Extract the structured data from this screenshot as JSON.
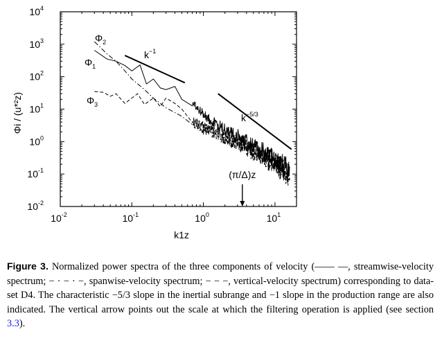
{
  "chart_data": {
    "type": "line",
    "x_scale": "log",
    "y_scale": "log",
    "xlim": [
      0.01,
      20
    ],
    "ylim": [
      0.01,
      10000
    ],
    "grid": false,
    "legend": "none",
    "ylabel": "Φi / (u*²z)",
    "xlabel": "k1z",
    "x_ticks": [
      {
        "base": "10",
        "exp": "-2"
      },
      {
        "base": "10",
        "exp": "-1"
      },
      {
        "base": "10",
        "exp": "0"
      },
      {
        "base": "10",
        "exp": "1"
      }
    ],
    "y_ticks": [
      {
        "base": "10",
        "exp": "-2"
      },
      {
        "base": "10",
        "exp": "-1"
      },
      {
        "base": "10",
        "exp": "0"
      },
      {
        "base": "10",
        "exp": "1"
      },
      {
        "base": "10",
        "exp": "2"
      },
      {
        "base": "10",
        "exp": "3"
      },
      {
        "base": "10",
        "exp": "4"
      }
    ],
    "series": [
      {
        "name": "Φ1",
        "style": "solid",
        "x": [
          0.03,
          0.045,
          0.06,
          0.08,
          0.1,
          0.13,
          0.16,
          0.2,
          0.25,
          0.3,
          0.4,
          0.5,
          0.7,
          1.0,
          1.5,
          2,
          3,
          4,
          6,
          8,
          10,
          13,
          16
        ],
        "y": [
          650,
          350,
          300,
          220,
          150,
          230,
          60,
          85,
          45,
          40,
          50,
          20,
          15,
          7,
          3.5,
          2.2,
          1.4,
          0.9,
          0.55,
          0.35,
          0.25,
          0.17,
          0.12
        ]
      },
      {
        "name": "Φ2",
        "style": "dashdot",
        "x": [
          0.03,
          0.045,
          0.06,
          0.08,
          0.1,
          0.15,
          0.2,
          0.3,
          0.5,
          0.7,
          1.0,
          1.5,
          2,
          3,
          4,
          6,
          8,
          10,
          13,
          16
        ],
        "y": [
          1200,
          500,
          300,
          150,
          85,
          40,
          22,
          11,
          6,
          3.8,
          2.3,
          1.7,
          1.3,
          0.9,
          0.65,
          0.42,
          0.3,
          0.22,
          0.15,
          0.11
        ]
      },
      {
        "name": "Φ3",
        "style": "dashed",
        "x": [
          0.03,
          0.04,
          0.05,
          0.06,
          0.08,
          0.1,
          0.12,
          0.15,
          0.2,
          0.25,
          0.3,
          0.4,
          0.5,
          0.7,
          1.0,
          1.5,
          2,
          3,
          4,
          6,
          8,
          10,
          13,
          16
        ],
        "y": [
          35,
          33,
          25,
          30,
          15,
          22,
          30,
          14,
          22,
          12,
          22,
          15,
          10,
          5,
          3,
          1.8,
          1.3,
          0.8,
          0.6,
          0.38,
          0.27,
          0.2,
          0.14,
          0.1
        ]
      }
    ],
    "reference_lines": [
      {
        "label": "k",
        "label_exp": "−1",
        "x": [
          0.08,
          0.55
        ],
        "y": [
          450,
          65
        ]
      },
      {
        "label": "k",
        "label_exp": "−5/3",
        "x": [
          1.6,
          17
        ],
        "y": [
          30,
          0.58
        ]
      }
    ],
    "series_labels": [
      {
        "text": "Φ",
        "sub": "1"
      },
      {
        "text": "Φ",
        "sub": "2"
      },
      {
        "text": "Φ",
        "sub": "3"
      }
    ],
    "annotation": {
      "text": "(π/Δ)z",
      "x": 3.5
    }
  },
  "caption": {
    "label": "Figure 3.",
    "text": "Normalized power spectra of the three components of velocity (—— —, streamwise-velocity spectrum; − · − · −, spanwise-velocity spectrum; − − −, vertical-velocity spectrum) corresponding to data-set D4. The characteristic −5/3 slope in the inertial subrange and −1 slope in the production range are also indicated. The vertical arrow points out the scale at which the filtering operation is applied (see section",
    "ref": "3.3",
    "end": ")."
  }
}
